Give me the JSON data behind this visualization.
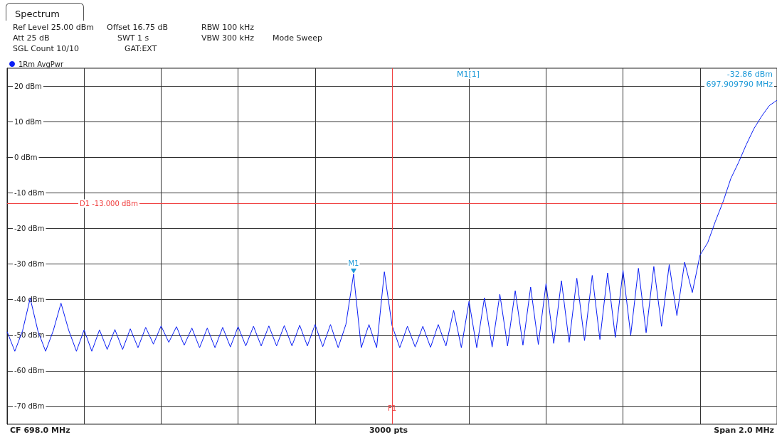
{
  "chart_data": {
    "type": "line",
    "title": "Spectrum",
    "legend": "top left",
    "grid": true,
    "tick_labels": "y",
    "line_style": "solid",
    "categories": [
      null,
      null,
      null,
      null,
      null,
      null,
      null,
      null,
      null,
      null,
      null,
      null,
      null,
      null,
      null,
      null,
      null,
      null,
      null,
      null,
      null,
      null,
      null,
      null,
      null,
      null,
      null,
      null,
      null,
      null,
      null,
      null,
      null,
      null,
      null,
      null,
      null,
      null,
      null,
      null,
      null,
      null,
      null,
      null,
      null,
      null,
      null,
      null,
      null,
      null,
      null,
      null,
      null,
      null,
      null,
      null,
      null,
      null,
      null,
      null,
      null,
      null,
      null,
      null,
      null,
      null,
      null,
      null,
      null,
      null,
      null,
      null,
      null,
      null,
      null,
      null,
      null,
      null,
      null,
      null,
      null,
      null,
      null,
      null,
      null,
      null,
      null,
      null,
      null,
      null,
      null,
      null,
      null,
      null,
      null,
      null,
      null,
      null,
      null,
      null,
      null
    ],
    "ylim": [
      -75,
      25
    ],
    "yticks": [
      {
        "value": 20,
        "label": "20 dBm"
      },
      {
        "value": 10,
        "label": "10 dBm"
      },
      {
        "value": 0,
        "label": "0 dBm"
      },
      {
        "value": -10,
        "label": "-10 dBm"
      },
      {
        "value": -20,
        "label": "-20 dBm"
      },
      {
        "value": -30,
        "label": "-30 dBm"
      },
      {
        "value": -40,
        "label": "-40 dBm"
      },
      {
        "value": -50,
        "label": "-50 dBm"
      },
      {
        "value": -60,
        "label": "-60 dBm"
      },
      {
        "value": -70,
        "label": "-70 dBm"
      }
    ],
    "ref_lines": [
      {
        "axis": "y",
        "value": -13,
        "label": "D1 -13.000 dBm",
        "color": "#f04040"
      }
    ],
    "annotations": [
      "Ref Level 25.00 dBm",
      "Offset 16.75 dB",
      "RBW 100 kHz",
      "Att 25 dB",
      "SWT 1 s",
      "VBW 300 kHz",
      "Mode Sweep",
      "SGL Count 10/10",
      "GAT:EXT",
      "M1[1]",
      "-32.86 dBm",
      "697.909790 MHz",
      "CF 698.0 MHz",
      "3000 pts",
      "Span 2.0 MHz",
      "F1",
      {
        "text": "M1",
        "y": -32.86
      }
    ],
    "series": [
      {
        "name": "1Rm AvgPwr",
        "color": "#0a1ef5",
        "values": [
          -49,
          -54.5,
          -48.8,
          -39.6,
          -48.8,
          -54.5,
          -48.7,
          -41,
          -48.6,
          -54.5,
          -48.5,
          -54.5,
          -48.5,
          -54,
          -48.4,
          -54,
          -48.2,
          -53.5,
          -47.8,
          -52.5,
          -47.4,
          -52,
          -47.6,
          -52.8,
          -48,
          -53.5,
          -48,
          -53.5,
          -47.8,
          -53.3,
          -47.6,
          -53,
          -47.5,
          -53,
          -47.4,
          -53,
          -47.3,
          -53,
          -47.2,
          -53,
          -47,
          -53.2,
          -47,
          -53.5,
          -47,
          -32.86,
          -53.5,
          -47,
          -53.5,
          -32.2,
          -47.3,
          -53.5,
          -47.5,
          -53.3,
          -47.5,
          -53.4,
          -47,
          -53,
          -43,
          -53.5,
          -40.5,
          -53.5,
          -39.5,
          -53.3,
          -38.5,
          -53,
          -37.5,
          -52.8,
          -36.5,
          -52.6,
          -35.5,
          -52.3,
          -34.7,
          -52,
          -34,
          -51.5,
          -33.2,
          -51.2,
          -32.5,
          -50.6,
          -31.8,
          -50,
          -31.2,
          -49.3,
          -30.7,
          -47.5,
          -30.2,
          -44.5,
          -29.5,
          -38,
          -27.5,
          -24,
          -18,
          -12.5,
          -6,
          -1.5,
          3.5,
          8,
          11.5,
          14.5,
          16
        ]
      }
    ]
  }
}
